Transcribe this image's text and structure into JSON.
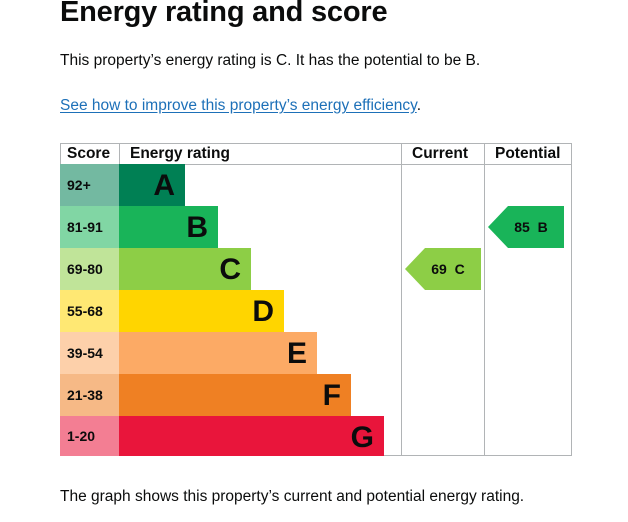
{
  "page": {
    "title": "Energy rating and score",
    "intro": "This property’s energy rating is C. It has the potential to be B.",
    "link_text": "See how to improve this property’s energy efficiency",
    "link_suffix": ".",
    "footer": "The graph shows this property’s current and potential energy rating."
  },
  "table": {
    "headers": {
      "score": "Score",
      "rating": "Energy rating",
      "current": "Current",
      "potential": "Potential"
    },
    "bands": [
      {
        "score": "92+",
        "letter": "A",
        "color": "#008054"
      },
      {
        "score": "81-91",
        "letter": "B",
        "color": "#19b459"
      },
      {
        "score": "69-80",
        "letter": "C",
        "color": "#8dce46"
      },
      {
        "score": "55-68",
        "letter": "D",
        "color": "#ffd500"
      },
      {
        "score": "39-54",
        "letter": "E",
        "color": "#fcaa65"
      },
      {
        "score": "21-38",
        "letter": "F",
        "color": "#ef8023"
      },
      {
        "score": "1-20",
        "letter": "G",
        "color": "#e9153b"
      }
    ],
    "current": {
      "label": "69 C",
      "band": "C",
      "color": "#8dce46"
    },
    "potential": {
      "label": "85 B",
      "band": "B",
      "color": "#19b459"
    }
  }
}
